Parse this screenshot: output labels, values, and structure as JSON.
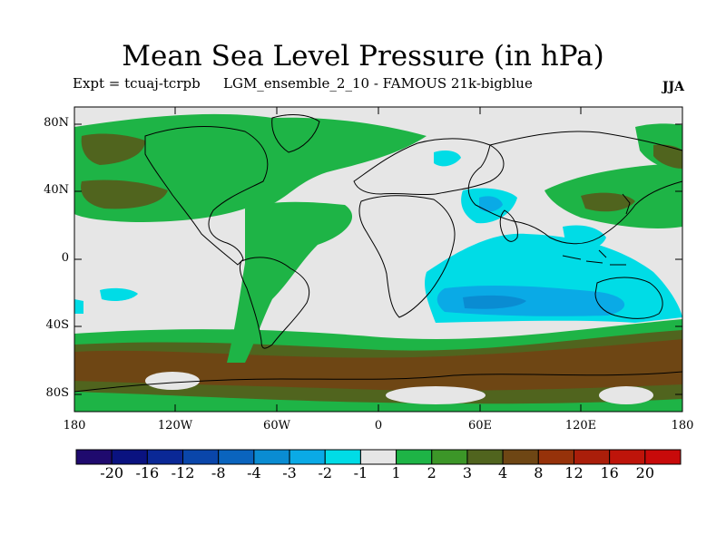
{
  "title": "Mean Sea Level Pressure (in hPa)",
  "expt_text": "Expt = tcuaj-tcrpb",
  "experiment_name": "LGM_ensemble_2_10 - FAMOUS 21k-bigblue",
  "season": "JJA",
  "lat_ticks": [
    "80N",
    "40N",
    "0",
    "40S",
    "80S"
  ],
  "lon_ticks": [
    "180",
    "120W",
    "60W",
    "0",
    "60E",
    "120E",
    "180"
  ],
  "colorbar": {
    "labels": [
      "-20",
      "-16",
      "-12",
      "-8",
      "-4",
      "-3",
      "-2",
      "-1",
      "1",
      "2",
      "3",
      "4",
      "8",
      "12",
      "16",
      "20"
    ],
    "colors": [
      "#1f0a6e",
      "#0a1280",
      "#0a2896",
      "#0a46aa",
      "#0a64be",
      "#0a8cd2",
      "#0aaae6",
      "#00dce6",
      "#e6e6e6",
      "#1eb446",
      "#3c9628",
      "#50641e",
      "#6e4614",
      "#96320a",
      "#aa1e0a",
      "#be140a",
      "#c80a0a"
    ]
  },
  "colors": {
    "neutral": "#e6e6e6",
    "land_coast": "#000000",
    "pos_2": "#1eb446",
    "pos_3": "#3c9628",
    "pos_4": "#50641e",
    "pos_8": "#6e4614",
    "neg_1": "#00dce6",
    "neg_2": "#0aaae6",
    "neg_3": "#0a8cd2"
  }
}
